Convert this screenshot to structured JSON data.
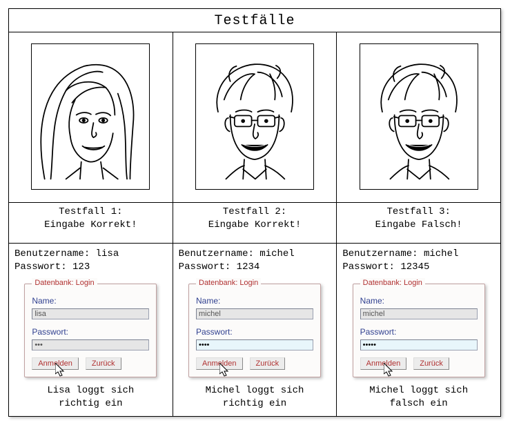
{
  "title": "Testfälle",
  "labels": {
    "testfall": "Testfall",
    "correct": "Eingabe Korrekt!",
    "wrong": "Eingabe Falsch!",
    "username": "Benutzername",
    "password": "Passwort"
  },
  "login_panel": {
    "legend": "Datenbank: Login",
    "name_label": "Name:",
    "pw_label": "Passwort:",
    "btn_login": "Anmelden",
    "btn_back": "Zurück"
  },
  "colors": {
    "frame_border": "#000000",
    "login_border": "#c0a0a0",
    "login_legend": "#b03030",
    "label_blue": "#304090",
    "button_text": "#b03030",
    "input_gray_bg": "#e6e6e6",
    "input_cyan_bg": "#e8f6fb",
    "background": "#ffffff"
  },
  "tests": [
    {
      "id": 1,
      "portrait": "lisa",
      "status_key": "correct",
      "username": "lisa",
      "password_plain": "123",
      "display_name": "lisa",
      "pw_dots": "•••",
      "name_field_style": "gray",
      "pw_field_style": "gray",
      "caption": "Lisa loggt sich\nrichtig ein"
    },
    {
      "id": 2,
      "portrait": "michel",
      "status_key": "correct",
      "username": "michel",
      "password_plain": "1234",
      "display_name": "michel",
      "pw_dots": "••••",
      "name_field_style": "gray",
      "pw_field_style": "cyan",
      "caption": "Michel loggt sich\nrichtig  ein"
    },
    {
      "id": 3,
      "portrait": "michel",
      "status_key": "wrong",
      "username": "michel",
      "password_plain": "12345",
      "display_name": "michel",
      "pw_dots": "•••••",
      "name_field_style": "gray",
      "pw_field_style": "cyan",
      "caption": "Michel loggt sich\nfalsch ein"
    }
  ]
}
